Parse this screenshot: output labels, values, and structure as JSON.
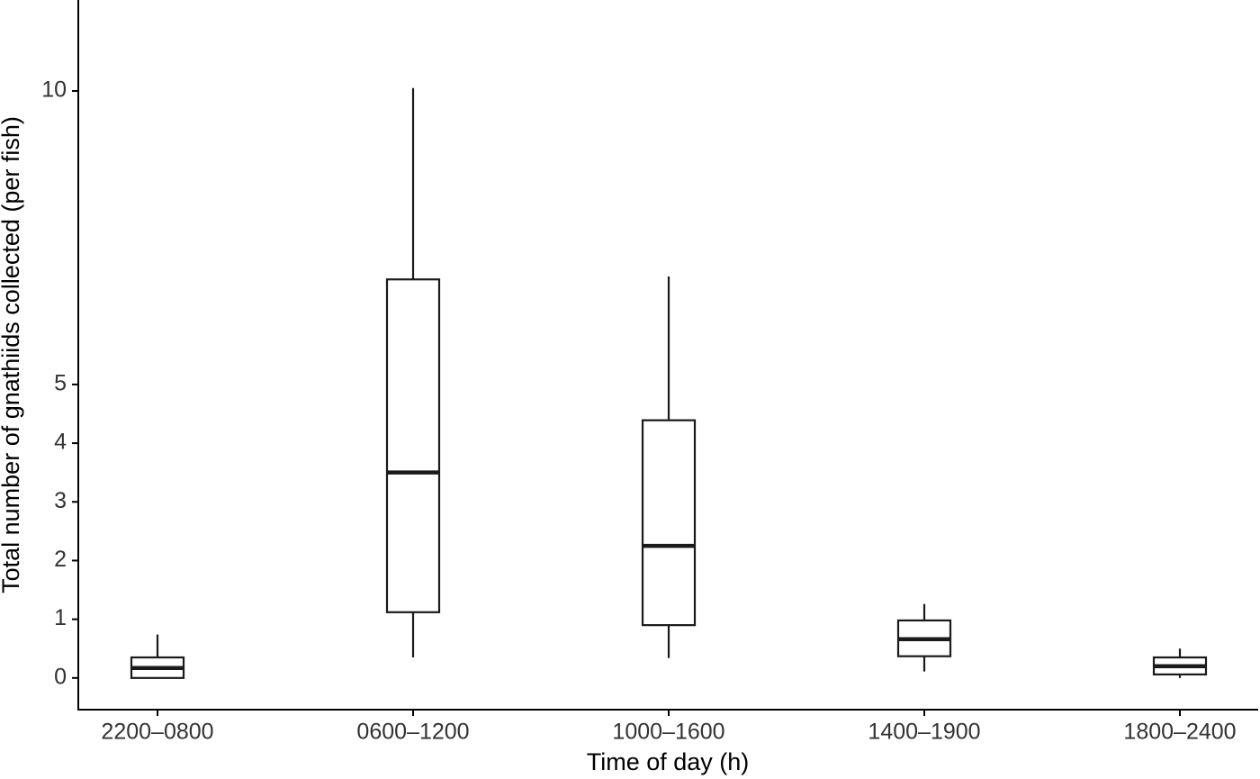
{
  "chart_data": {
    "type": "box",
    "x_label": "Time of day (h)",
    "y_label": "Total number of gnathiids collected (per fish)",
    "categories": [
      "2200–0800",
      "0600–1200",
      "1000–1600",
      "1400–1900",
      "1800–2400"
    ],
    "series": [
      {
        "name": "min",
        "values": [
          0,
          0.35,
          0.34,
          0.11,
          0
        ]
      },
      {
        "name": "q1",
        "values": [
          0,
          1.12,
          0.9,
          0.37,
          0.06
        ]
      },
      {
        "name": "median",
        "values": [
          0.17,
          3.5,
          2.25,
          0.66,
          0.2
        ]
      },
      {
        "name": "q3",
        "values": [
          0.35,
          6.79,
          4.39,
          0.98,
          0.35
        ]
      },
      {
        "name": "max",
        "values": [
          0.74,
          10.05,
          6.84,
          1.26,
          0.5
        ]
      }
    ],
    "color": "#1a1a1a",
    "ylim": [
      -0.54,
      11.55
    ],
    "yticks": [
      0,
      1,
      2,
      3,
      4,
      5,
      10
    ],
    "grid": false
  }
}
